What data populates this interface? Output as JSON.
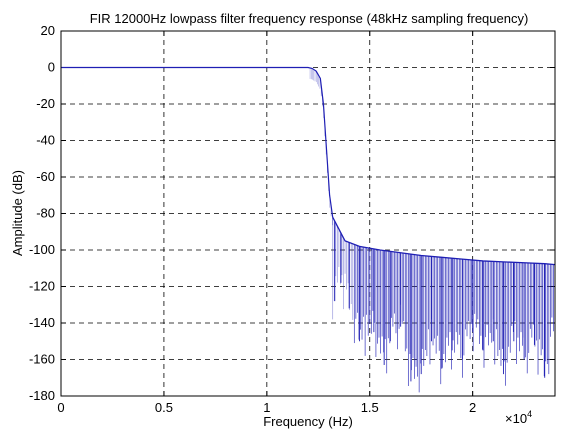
{
  "chart_data": {
    "type": "line",
    "title": "FIR 12000Hz lowpass filter frequency response (48kHz sampling frequency)",
    "xlabel": "Frequency (Hz)",
    "ylabel": "Amplitude (dB)",
    "x_multiplier_label": "×10",
    "x_multiplier_exponent": "4",
    "xlim": [
      0,
      24000
    ],
    "ylim": [
      -180,
      20
    ],
    "x_ticks": [
      0,
      5000,
      10000,
      15000,
      20000
    ],
    "x_tick_labels": [
      "0",
      "0.5",
      "1",
      "1.5",
      "2"
    ],
    "y_ticks": [
      20,
      0,
      -20,
      -40,
      -60,
      -80,
      -100,
      -120,
      -140,
      -160,
      -180
    ],
    "y_tick_labels": [
      "20",
      "0",
      "-20",
      "-40",
      "-60",
      "-80",
      "-100",
      "-120",
      "-140",
      "-160",
      "-180"
    ],
    "grid": true,
    "line_color": "#1f1fb4",
    "series": [
      {
        "passband": {
          "x": [
            0,
            12000
          ],
          "y": [
            0,
            0
          ]
        },
        "transition": {
          "x": [
            12000,
            12200,
            12400,
            12600,
            12750,
            12900,
            13050,
            13200
          ],
          "y": [
            0,
            -0.5,
            -2,
            -6,
            -20,
            -45,
            -70,
            -82
          ]
        },
        "stopband_envelope": {
          "x": [
            13200,
            13800,
            14500,
            15500,
            16500,
            17500,
            18500,
            19500,
            20500,
            21500,
            22500,
            23500,
            24000
          ],
          "y": [
            -82,
            -95,
            -98,
            -100,
            -101.5,
            -103,
            -104,
            -105,
            -106,
            -106.5,
            -107,
            -107.5,
            -108
          ]
        },
        "stopband_notch_depths": [
          {
            "x": 13300,
            "y": -128
          },
          {
            "x": 13600,
            "y": -118
          },
          {
            "x": 14000,
            "y": -132
          },
          {
            "x": 14500,
            "y": -150
          },
          {
            "x": 15200,
            "y": -145
          },
          {
            "x": 15700,
            "y": -163
          },
          {
            "x": 16000,
            "y": -150
          },
          {
            "x": 16500,
            "y": -142
          },
          {
            "x": 17000,
            "y": -172
          },
          {
            "x": 17500,
            "y": -168
          },
          {
            "x": 18000,
            "y": -150
          },
          {
            "x": 18500,
            "y": -165
          },
          {
            "x": 19000,
            "y": -155
          },
          {
            "x": 19500,
            "y": -160
          },
          {
            "x": 20000,
            "y": -145
          },
          {
            "x": 20500,
            "y": -155
          },
          {
            "x": 21000,
            "y": -150
          },
          {
            "x": 21500,
            "y": -168
          },
          {
            "x": 22000,
            "y": -150
          },
          {
            "x": 22500,
            "y": -160
          },
          {
            "x": 23000,
            "y": -152
          },
          {
            "x": 23500,
            "y": -170
          },
          {
            "x": 24000,
            "y": -140
          }
        ]
      }
    ]
  }
}
